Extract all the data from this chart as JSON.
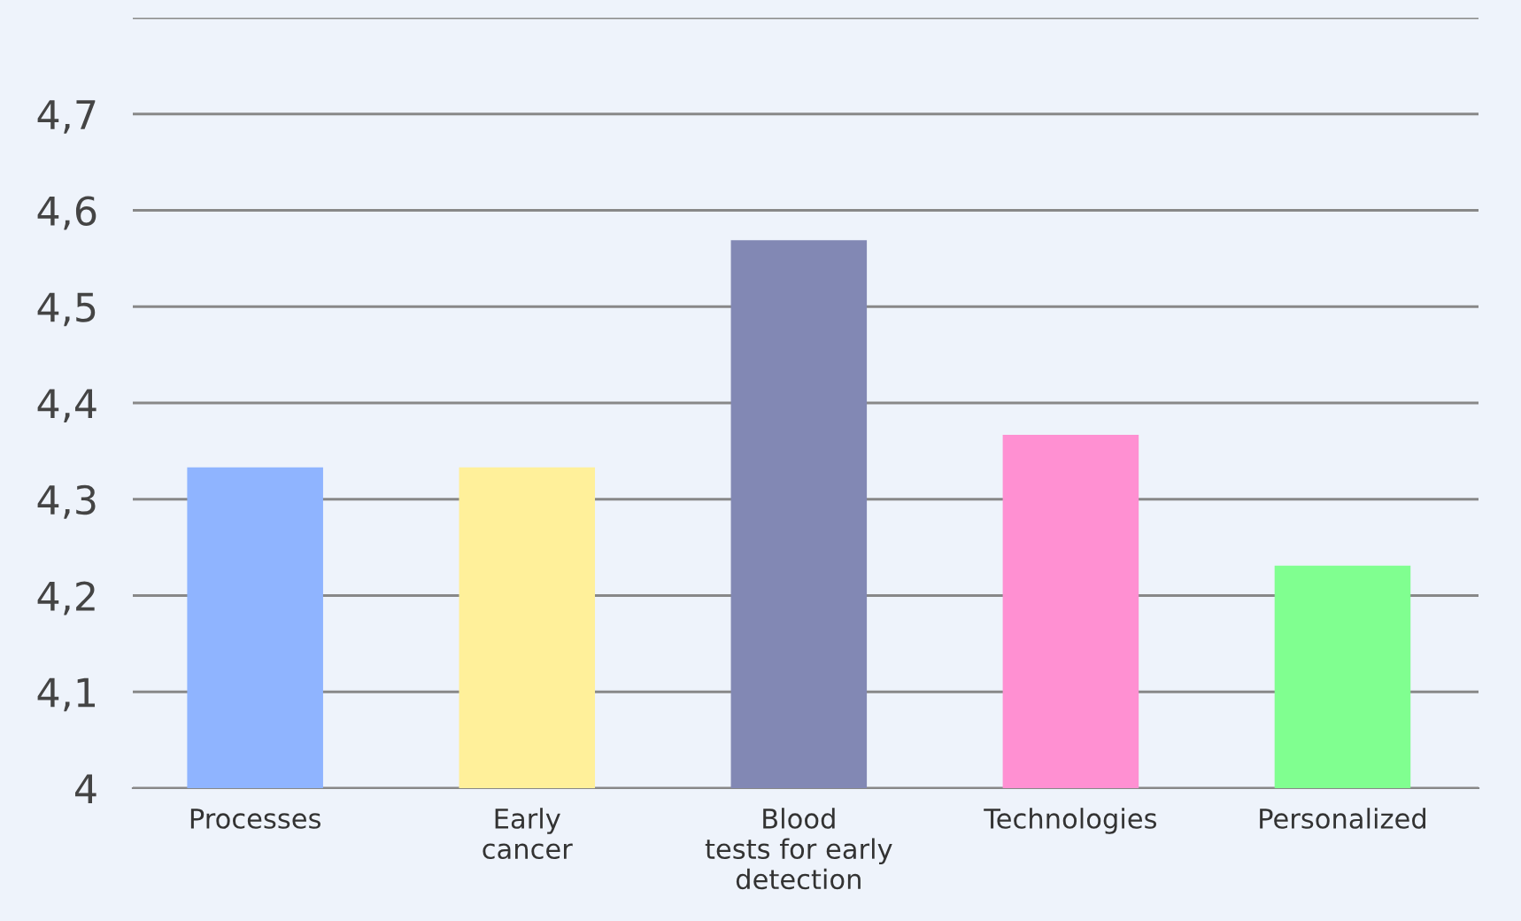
{
  "chart_data": {
    "type": "bar",
    "categories": [
      "Processes",
      "Early\ncancer",
      "Blood\ntests for early\ndetection",
      "Technologies",
      "Personalized"
    ],
    "values": [
      4.333,
      4.333,
      4.569,
      4.367,
      4.231
    ],
    "colors": [
      "#8fb4ff",
      "#fff09a",
      "#8288b4",
      "#ff90d2",
      "#80ff90"
    ],
    "ylim": [
      4,
      4.8
    ],
    "yticks": [
      {
        "value": 4,
        "label": "4"
      },
      {
        "value": 4.1,
        "label": "4,1"
      },
      {
        "value": 4.2,
        "label": "4,2"
      },
      {
        "value": 4.3,
        "label": "4,3"
      },
      {
        "value": 4.4,
        "label": "4,4"
      },
      {
        "value": 4.5,
        "label": "4,5"
      },
      {
        "value": 4.6,
        "label": "4,6"
      },
      {
        "value": 4.7,
        "label": "4,7"
      },
      {
        "value": 4.8,
        "label": null
      }
    ],
    "grid": "y",
    "legend": false
  }
}
